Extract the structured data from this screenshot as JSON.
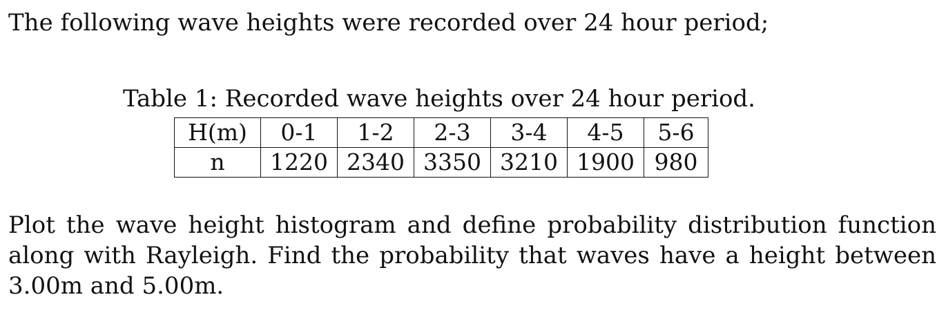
{
  "intro_text": "The following wave heights were recorded over 24 hour period;",
  "table": {
    "caption": "Table 1: Recorded wave heights over 24 hour period.",
    "row_header_h": "H(m)",
    "row_header_n": "n",
    "height_ranges": [
      "0-1",
      "1-2",
      "2-3",
      "3-4",
      "4-5",
      "5-6"
    ],
    "counts": [
      "1220",
      "2340",
      "3350",
      "3210",
      "1900",
      "980"
    ]
  },
  "question_text": "Plot the wave height histogram and define probability distribution function along with Rayleigh. Find the probability that waves have a height between 3.00m and 5.00m."
}
